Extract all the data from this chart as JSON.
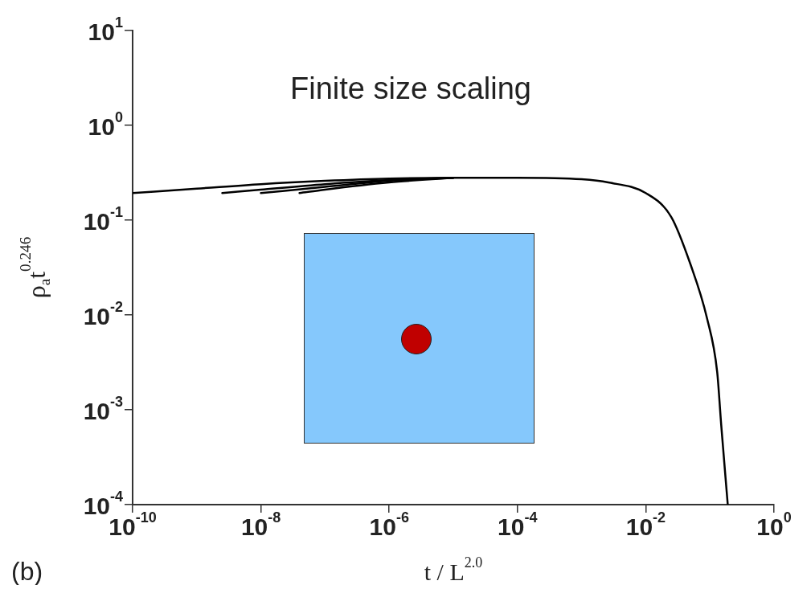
{
  "chart_data": {
    "type": "line",
    "title": "Finite size scaling",
    "xlabel": "t / L$^{2.0}$",
    "ylabel": "ρ$_{a}$t$^{0.246}$",
    "log": "xy",
    "grid": false,
    "legend": false,
    "marker": "none",
    "line_style": "solid",
    "xlim": [
      1e-10,
      1
    ],
    "ylim": [
      0.0001,
      10
    ],
    "xticks": [
      {
        "value": 1e-10,
        "label": "10$^{-10}$"
      },
      {
        "value": 1e-08,
        "label": "10$^{-8}$"
      },
      {
        "value": 1e-06,
        "label": "10$^{-6}$"
      },
      {
        "value": 0.0001,
        "label": "10$^{-4}$"
      },
      {
        "value": 0.01,
        "label": "10$^{-2}$"
      },
      {
        "value": 1,
        "label": "10$^{0}$"
      }
    ],
    "yticks": [
      {
        "value": 0.0001,
        "label": "10$^{-4}$"
      },
      {
        "value": 0.001,
        "label": "10$^{-3}$"
      },
      {
        "value": 0.01,
        "label": "10$^{-2}$"
      },
      {
        "value": 0.1,
        "label": "10$^{-1}$"
      },
      {
        "value": 1,
        "label": "10$^{0}$"
      },
      {
        "value": 10,
        "label": "10$^{1}$"
      }
    ],
    "series": [
      {
        "color": "#000000",
        "x": [
          1e-10,
          1e-09,
          1e-08,
          1e-07,
          1e-06,
          1e-05,
          0.0001,
          0.001,
          0.0026,
          0.01,
          0.025,
          0.05,
          0.09,
          0.13,
          0.15,
          0.19
        ],
        "values": [
          0.193,
          0.215,
          0.24,
          0.26,
          0.275,
          0.28,
          0.28,
          0.27,
          0.25,
          0.193,
          0.108,
          0.034,
          0.0093,
          0.0025,
          0.0007,
          0.0001
        ]
      },
      {
        "color": "#000000",
        "x": [
          2.5e-09,
          1e-08,
          1e-07,
          1e-06,
          1e-05
        ],
        "values": [
          0.193,
          0.21,
          0.24,
          0.265,
          0.28
        ]
      },
      {
        "color": "#000000",
        "x": [
          1e-08,
          1e-07,
          1e-06,
          1e-05
        ],
        "values": [
          0.193,
          0.225,
          0.26,
          0.28
        ]
      },
      {
        "color": "#000000",
        "x": [
          4e-08,
          1e-07,
          1e-06,
          1e-05
        ],
        "values": [
          0.193,
          0.21,
          0.25,
          0.28
        ]
      }
    ],
    "annotations": [
      "(b)"
    ]
  }
}
